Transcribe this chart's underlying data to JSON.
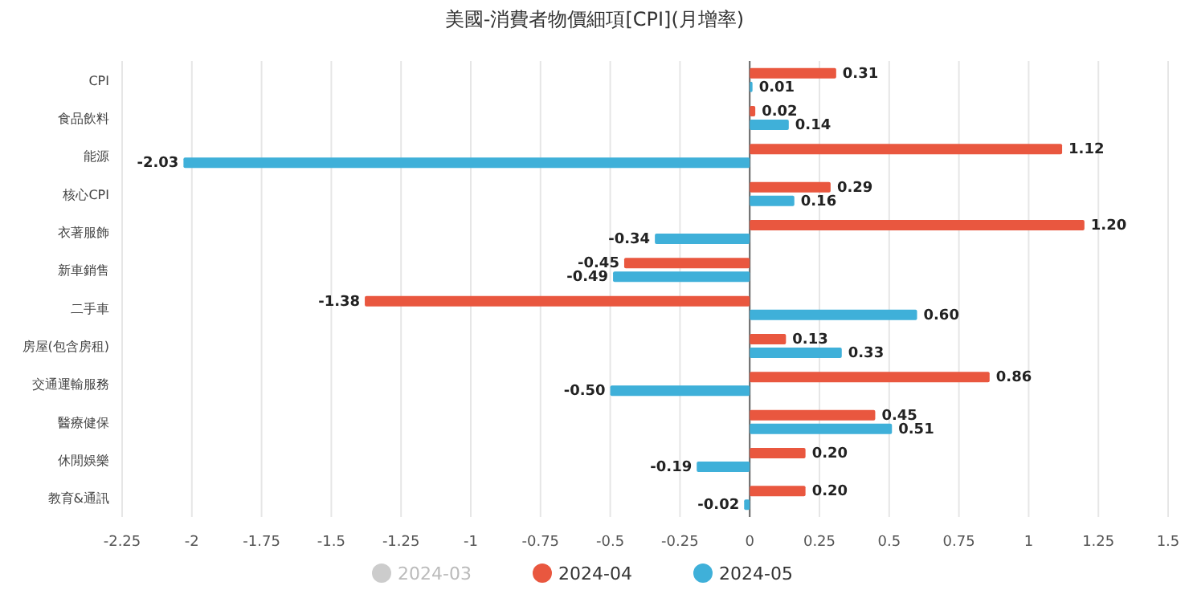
{
  "chart_data": {
    "type": "bar",
    "orientation": "horizontal",
    "title": "美國-消費者物價細項[CPI](月增率)",
    "categories": [
      "CPI",
      "食品飲料",
      "能源",
      "核心CPI",
      "衣著服飾",
      "新車銷售",
      "二手車",
      "房屋(包含房租)",
      "交通運輸服務",
      "醫療健保",
      "休閒娛樂",
      "教育&通訊"
    ],
    "series": [
      {
        "name": "2024-03",
        "color": "#cccccc",
        "values": [
          null,
          null,
          null,
          null,
          null,
          null,
          null,
          null,
          null,
          null,
          null,
          null
        ]
      },
      {
        "name": "2024-04",
        "color": "#e9573f",
        "values": [
          0.31,
          0.02,
          1.12,
          0.29,
          1.2,
          -0.45,
          -1.38,
          0.13,
          0.86,
          0.45,
          0.2,
          0.2
        ],
        "value_labels": [
          "0.31",
          "0.02",
          "1.12",
          "0.29",
          "1.20",
          "-0.45",
          "-1.38",
          "0.13",
          "0.86",
          "0.45",
          "0.20",
          "0.20"
        ]
      },
      {
        "name": "2024-05",
        "color": "#3fb0d9",
        "values": [
          0.01,
          0.14,
          -2.03,
          0.16,
          -0.34,
          -0.49,
          0.6,
          0.33,
          -0.5,
          0.51,
          -0.19,
          -0.02
        ],
        "value_labels": [
          "0.01",
          "0.14",
          "-2.03",
          "0.16",
          "-0.34",
          "-0.49",
          "0.60",
          "0.33",
          "-0.50",
          "0.51",
          "-0.19",
          "-0.02"
        ]
      }
    ],
    "xlim": [
      -2.25,
      1.5
    ],
    "xticks": [
      -2.25,
      -2,
      -1.75,
      -1.5,
      -1.25,
      -1,
      -0.75,
      -0.5,
      -0.25,
      0,
      0.25,
      0.5,
      0.75,
      1,
      1.25,
      1.5
    ],
    "grid": "x",
    "legend": "bottom"
  }
}
